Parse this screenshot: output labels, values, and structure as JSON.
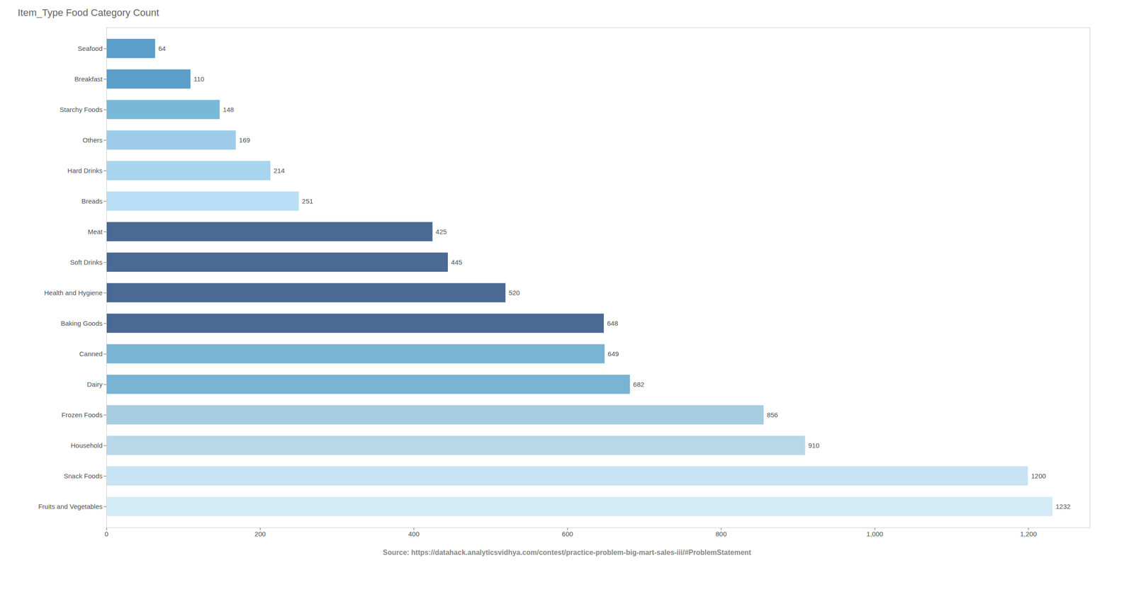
{
  "chart_data": {
    "type": "bar",
    "orientation": "horizontal",
    "title": "Item_Type Food Category Count",
    "categories": [
      "Seafood",
      "Breakfast",
      "Starchy Foods",
      "Others",
      "Hard Drinks",
      "Breads",
      "Meat",
      "Soft Drinks",
      "Health and Hygiene",
      "Baking Goods",
      "Canned",
      "Dairy",
      "Frozen Foods",
      "Household",
      "Snack Foods",
      "Fruits and Vegetables"
    ],
    "values": [
      64,
      110,
      148,
      169,
      214,
      251,
      425,
      445,
      520,
      648,
      649,
      682,
      856,
      910,
      1200,
      1232
    ],
    "colors": [
      "#5b9ec9",
      "#5b9ec9",
      "#7ab8d9",
      "#9ecce8",
      "#a8d4ed",
      "#b8dff5",
      "#4a6a94",
      "#4a6a94",
      "#4a6a94",
      "#4a6a94",
      "#7ab4d4",
      "#7ab4d4",
      "#a8cce0",
      "#b8d8ea",
      "#c8e4f4",
      "#d4ecf8"
    ],
    "xlim": [
      0,
      1280
    ],
    "xticks": [
      0,
      200,
      400,
      600,
      800,
      1000,
      1200
    ],
    "grid": false,
    "data_labels": true,
    "annotations": [
      "Source: https://datahack.analyticsvidhya.com/contest/practice-problem-big-mart-sales-iii/#ProblemStatement"
    ]
  }
}
